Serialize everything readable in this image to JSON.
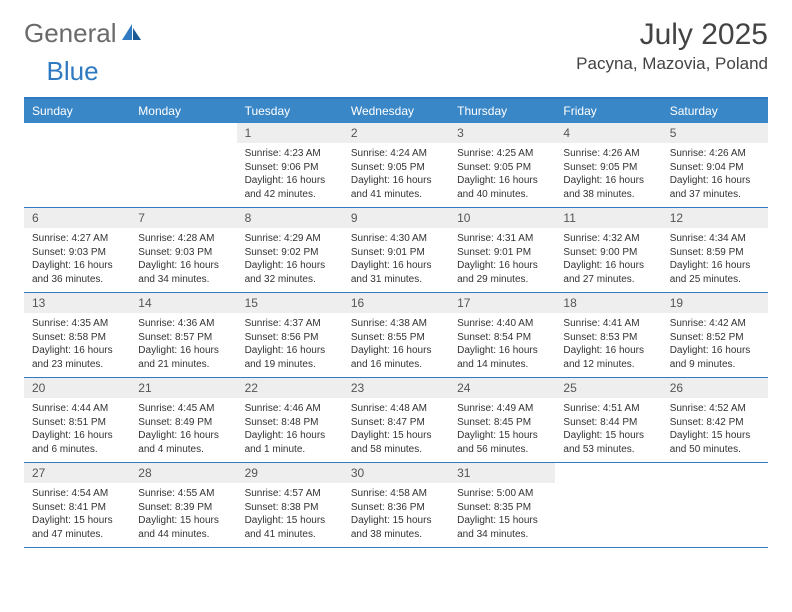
{
  "brand": {
    "word1": "General",
    "word2": "Blue"
  },
  "title": "July 2025",
  "location": "Pacyna, Mazovia, Poland",
  "colors": {
    "header_bg": "#3a87c8",
    "header_text": "#ffffff",
    "border": "#2f7ac0",
    "daynum_bg": "#eeeeee",
    "body_text": "#333333",
    "logo_gray": "#6a6a6a",
    "logo_blue": "#2f7ac0"
  },
  "layout": {
    "columns": 7,
    "rows": 5,
    "first_day_column": 2
  },
  "weekdays": [
    "Sunday",
    "Monday",
    "Tuesday",
    "Wednesday",
    "Thursday",
    "Friday",
    "Saturday"
  ],
  "days": [
    {
      "n": 1,
      "sunrise": "4:23 AM",
      "sunset": "9:06 PM",
      "daylight": "16 hours and 42 minutes."
    },
    {
      "n": 2,
      "sunrise": "4:24 AM",
      "sunset": "9:05 PM",
      "daylight": "16 hours and 41 minutes."
    },
    {
      "n": 3,
      "sunrise": "4:25 AM",
      "sunset": "9:05 PM",
      "daylight": "16 hours and 40 minutes."
    },
    {
      "n": 4,
      "sunrise": "4:26 AM",
      "sunset": "9:05 PM",
      "daylight": "16 hours and 38 minutes."
    },
    {
      "n": 5,
      "sunrise": "4:26 AM",
      "sunset": "9:04 PM",
      "daylight": "16 hours and 37 minutes."
    },
    {
      "n": 6,
      "sunrise": "4:27 AM",
      "sunset": "9:03 PM",
      "daylight": "16 hours and 36 minutes."
    },
    {
      "n": 7,
      "sunrise": "4:28 AM",
      "sunset": "9:03 PM",
      "daylight": "16 hours and 34 minutes."
    },
    {
      "n": 8,
      "sunrise": "4:29 AM",
      "sunset": "9:02 PM",
      "daylight": "16 hours and 32 minutes."
    },
    {
      "n": 9,
      "sunrise": "4:30 AM",
      "sunset": "9:01 PM",
      "daylight": "16 hours and 31 minutes."
    },
    {
      "n": 10,
      "sunrise": "4:31 AM",
      "sunset": "9:01 PM",
      "daylight": "16 hours and 29 minutes."
    },
    {
      "n": 11,
      "sunrise": "4:32 AM",
      "sunset": "9:00 PM",
      "daylight": "16 hours and 27 minutes."
    },
    {
      "n": 12,
      "sunrise": "4:34 AM",
      "sunset": "8:59 PM",
      "daylight": "16 hours and 25 minutes."
    },
    {
      "n": 13,
      "sunrise": "4:35 AM",
      "sunset": "8:58 PM",
      "daylight": "16 hours and 23 minutes."
    },
    {
      "n": 14,
      "sunrise": "4:36 AM",
      "sunset": "8:57 PM",
      "daylight": "16 hours and 21 minutes."
    },
    {
      "n": 15,
      "sunrise": "4:37 AM",
      "sunset": "8:56 PM",
      "daylight": "16 hours and 19 minutes."
    },
    {
      "n": 16,
      "sunrise": "4:38 AM",
      "sunset": "8:55 PM",
      "daylight": "16 hours and 16 minutes."
    },
    {
      "n": 17,
      "sunrise": "4:40 AM",
      "sunset": "8:54 PM",
      "daylight": "16 hours and 14 minutes."
    },
    {
      "n": 18,
      "sunrise": "4:41 AM",
      "sunset": "8:53 PM",
      "daylight": "16 hours and 12 minutes."
    },
    {
      "n": 19,
      "sunrise": "4:42 AM",
      "sunset": "8:52 PM",
      "daylight": "16 hours and 9 minutes."
    },
    {
      "n": 20,
      "sunrise": "4:44 AM",
      "sunset": "8:51 PM",
      "daylight": "16 hours and 6 minutes."
    },
    {
      "n": 21,
      "sunrise": "4:45 AM",
      "sunset": "8:49 PM",
      "daylight": "16 hours and 4 minutes."
    },
    {
      "n": 22,
      "sunrise": "4:46 AM",
      "sunset": "8:48 PM",
      "daylight": "16 hours and 1 minute."
    },
    {
      "n": 23,
      "sunrise": "4:48 AM",
      "sunset": "8:47 PM",
      "daylight": "15 hours and 58 minutes."
    },
    {
      "n": 24,
      "sunrise": "4:49 AM",
      "sunset": "8:45 PM",
      "daylight": "15 hours and 56 minutes."
    },
    {
      "n": 25,
      "sunrise": "4:51 AM",
      "sunset": "8:44 PM",
      "daylight": "15 hours and 53 minutes."
    },
    {
      "n": 26,
      "sunrise": "4:52 AM",
      "sunset": "8:42 PM",
      "daylight": "15 hours and 50 minutes."
    },
    {
      "n": 27,
      "sunrise": "4:54 AM",
      "sunset": "8:41 PM",
      "daylight": "15 hours and 47 minutes."
    },
    {
      "n": 28,
      "sunrise": "4:55 AM",
      "sunset": "8:39 PM",
      "daylight": "15 hours and 44 minutes."
    },
    {
      "n": 29,
      "sunrise": "4:57 AM",
      "sunset": "8:38 PM",
      "daylight": "15 hours and 41 minutes."
    },
    {
      "n": 30,
      "sunrise": "4:58 AM",
      "sunset": "8:36 PM",
      "daylight": "15 hours and 38 minutes."
    },
    {
      "n": 31,
      "sunrise": "5:00 AM",
      "sunset": "8:35 PM",
      "daylight": "15 hours and 34 minutes."
    }
  ],
  "labels": {
    "sunrise": "Sunrise: ",
    "sunset": "Sunset: ",
    "daylight": "Daylight: "
  }
}
